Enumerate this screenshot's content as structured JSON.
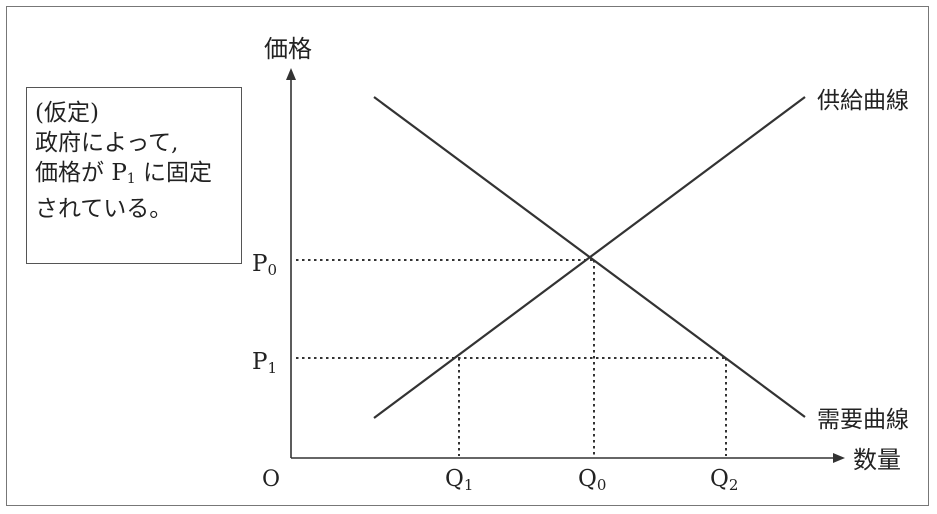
{
  "diagram": {
    "axes": {
      "y_label": "価格",
      "x_label": "数量",
      "origin_label": "O"
    },
    "curves": {
      "supply_label": "供給曲線",
      "demand_label": "需要曲線"
    },
    "price_ticks": [
      {
        "main": "P",
        "sub": "0"
      },
      {
        "main": "P",
        "sub": "1"
      }
    ],
    "quantity_ticks": [
      {
        "main": "Q",
        "sub": "1"
      },
      {
        "main": "Q",
        "sub": "0"
      },
      {
        "main": "Q",
        "sub": "2"
      }
    ],
    "assumption_box": {
      "line1": "(仮定)",
      "line2": "政府によって,",
      "line3_prefix": "価格が",
      "line3_symbol": "P",
      "line3_sub": "1",
      "line3_suffix": "に固定",
      "line4": "されている。"
    }
  }
}
